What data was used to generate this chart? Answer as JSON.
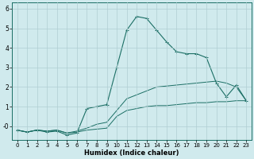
{
  "xlabel": "Humidex (Indice chaleur)",
  "bg_color": "#d0eaed",
  "grid_color": "#b0ced2",
  "line_color": "#1a6e64",
  "xlim": [
    -0.5,
    23.5
  ],
  "ylim": [
    -0.7,
    6.3
  ],
  "yticks": [
    0,
    1,
    2,
    3,
    4,
    5,
    6
  ],
  "ytick_labels": [
    "-0",
    "1",
    "2",
    "3",
    "4",
    "5",
    "6"
  ],
  "xticks": [
    0,
    1,
    2,
    3,
    4,
    5,
    6,
    7,
    8,
    9,
    10,
    11,
    12,
    13,
    14,
    15,
    16,
    17,
    18,
    19,
    20,
    21,
    22,
    23
  ],
  "line1_x": [
    0,
    1,
    2,
    3,
    4,
    5,
    6,
    7,
    8,
    9,
    10,
    11,
    12,
    13,
    14,
    15,
    16,
    17,
    18,
    19,
    20,
    21,
    22,
    23
  ],
  "line1_y": [
    -0.2,
    -0.3,
    -0.2,
    -0.25,
    -0.2,
    -0.35,
    -0.3,
    -0.2,
    -0.15,
    -0.1,
    0.5,
    0.8,
    0.9,
    1.0,
    1.05,
    1.05,
    1.1,
    1.15,
    1.2,
    1.2,
    1.25,
    1.25,
    1.3,
    1.3
  ],
  "line2_x": [
    0,
    1,
    2,
    3,
    4,
    5,
    6,
    7,
    8,
    9,
    10,
    11,
    12,
    13,
    14,
    15,
    16,
    17,
    18,
    19,
    20,
    21,
    22,
    23
  ],
  "line2_y": [
    -0.2,
    -0.3,
    -0.2,
    -0.25,
    -0.2,
    -0.35,
    -0.25,
    -0.1,
    0.1,
    0.2,
    0.8,
    1.4,
    1.6,
    1.8,
    2.0,
    2.05,
    2.1,
    2.15,
    2.2,
    2.25,
    2.3,
    2.2,
    2.0,
    1.3
  ],
  "line3_x": [
    0,
    1,
    2,
    3,
    4,
    5,
    6,
    7,
    8,
    9,
    10,
    11,
    12,
    13,
    14,
    15,
    16,
    17,
    18,
    19,
    20,
    21,
    22,
    23
  ],
  "line3_y": [
    -0.2,
    -0.3,
    -0.2,
    -0.3,
    -0.25,
    -0.45,
    -0.35,
    0.9,
    1.0,
    1.1,
    3.0,
    4.9,
    5.6,
    5.5,
    4.9,
    4.3,
    3.8,
    3.7,
    3.7,
    3.5,
    2.2,
    1.5,
    2.1,
    1.3
  ]
}
